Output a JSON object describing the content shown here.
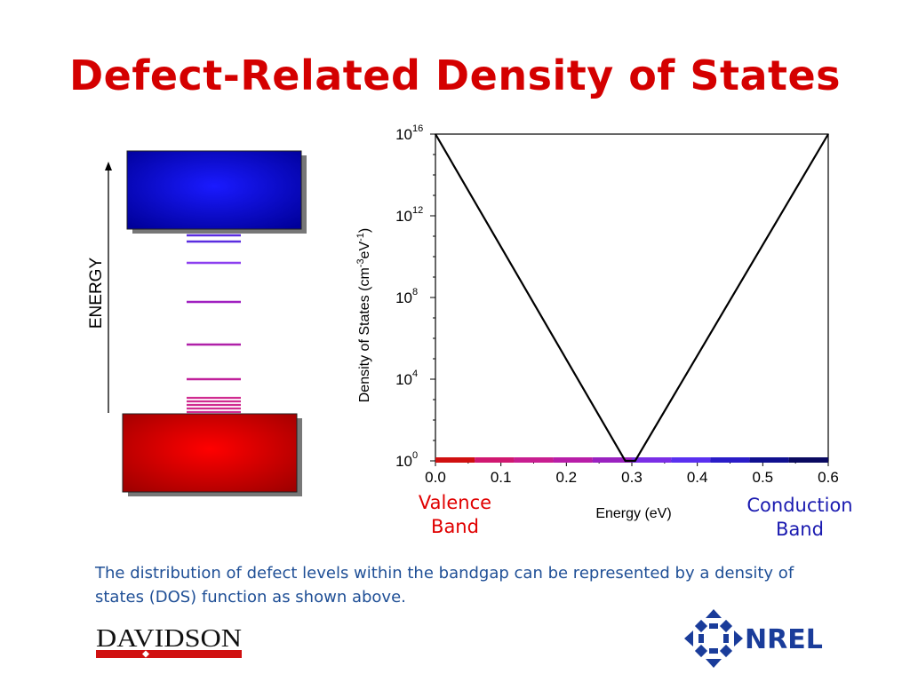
{
  "title": "Defect-Related Density of States",
  "band_diagram": {
    "axis_label": "ENERGY",
    "conduction_color": "#1010ff",
    "valence_color": "#ff0000",
    "defect_level_colors": [
      "#5a2de0",
      "#8c3ff0",
      "#a020c0",
      "#b020a8",
      "#c0209a",
      "#d02c90"
    ]
  },
  "chart_data": {
    "type": "line",
    "title": "",
    "xlabel": "Energy (eV)",
    "ylabel_base": "Density of States (cm",
    "ylabel_exp1": "-3",
    "ylabel_mid": "eV",
    "ylabel_exp2": "-1",
    "ylabel_close": ")",
    "xlim": [
      0.0,
      0.6
    ],
    "ylim_log10": [
      0,
      16
    ],
    "y_scale": "log",
    "x_ticks": [
      "0.0",
      "0.1",
      "0.2",
      "0.3",
      "0.4",
      "0.5",
      "0.6"
    ],
    "y_ticks": [
      {
        "base": "10",
        "exp": "0"
      },
      {
        "base": "10",
        "exp": "4"
      },
      {
        "base": "10",
        "exp": "8"
      },
      {
        "base": "10",
        "exp": "12"
      },
      {
        "base": "10",
        "exp": "16"
      }
    ],
    "series": [
      {
        "x": [
          0.0,
          0.29,
          0.305,
          0.6
        ],
        "y_log10": [
          16,
          0,
          0,
          16
        ],
        "color": "#000000"
      }
    ],
    "gradient_bar_colors": [
      "#d01010",
      "#d01870",
      "#c81e90",
      "#b81ea8",
      "#9a22c0",
      "#7a2ee6",
      "#5a30f0",
      "#2a1cc8",
      "#101090",
      "#0a0a60"
    ],
    "grid": false
  },
  "labels": {
    "valence": [
      "Valence",
      "Band"
    ],
    "conduction": [
      "Conduction",
      "Band"
    ]
  },
  "caption": "The distribution of defect levels within the bandgap can be represented by a density of states (DOS) function as shown above.",
  "logos": {
    "davidson": "DAVIDSON",
    "nrel": "NREL"
  }
}
